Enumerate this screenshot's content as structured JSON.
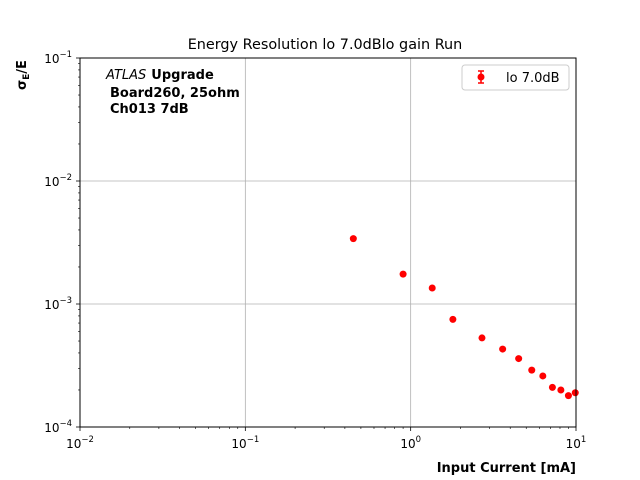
{
  "chart_data": {
    "type": "scatter",
    "title": "Energy Resolution lo 7.0dBlo gain Run",
    "xlabel": "Input Current [mA]",
    "ylabel_main": "σ",
    "ylabel_sub": "E",
    "ylabel_tail": "/E",
    "xscale": "log",
    "yscale": "log",
    "xlim": [
      0.01,
      10
    ],
    "ylim": [
      0.0001,
      0.1
    ],
    "grid": true,
    "legend_position": "top-right",
    "x_ticks": [
      {
        "value": 0.01,
        "base": "10",
        "exp": "−2"
      },
      {
        "value": 0.1,
        "base": "10",
        "exp": "−1"
      },
      {
        "value": 1,
        "base": "10",
        "exp": "0"
      },
      {
        "value": 10,
        "base": "10",
        "exp": "1"
      }
    ],
    "y_ticks": [
      {
        "value": 0.0001,
        "base": "10",
        "exp": "−4"
      },
      {
        "value": 0.001,
        "base": "10",
        "exp": "−3"
      },
      {
        "value": 0.01,
        "base": "10",
        "exp": "−2"
      },
      {
        "value": 0.1,
        "base": "10",
        "exp": "−1"
      }
    ],
    "annotation": {
      "atlas": "ATLAS",
      "upgrade": "Upgrade",
      "line2": "Board260, 25ohm",
      "line3": "Ch013 7dB"
    },
    "series": [
      {
        "name": "lo 7.0dB",
        "color": "#ff0000",
        "x": [
          0.45,
          0.9,
          1.35,
          1.8,
          2.7,
          3.6,
          4.5,
          5.4,
          6.3,
          7.2,
          8.1,
          9.0,
          9.9
        ],
        "y": [
          0.0034,
          0.00175,
          0.00135,
          0.00075,
          0.00053,
          0.00043,
          0.00036,
          0.00029,
          0.00026,
          0.00021,
          0.0002,
          0.00018,
          0.00019
        ]
      }
    ]
  }
}
